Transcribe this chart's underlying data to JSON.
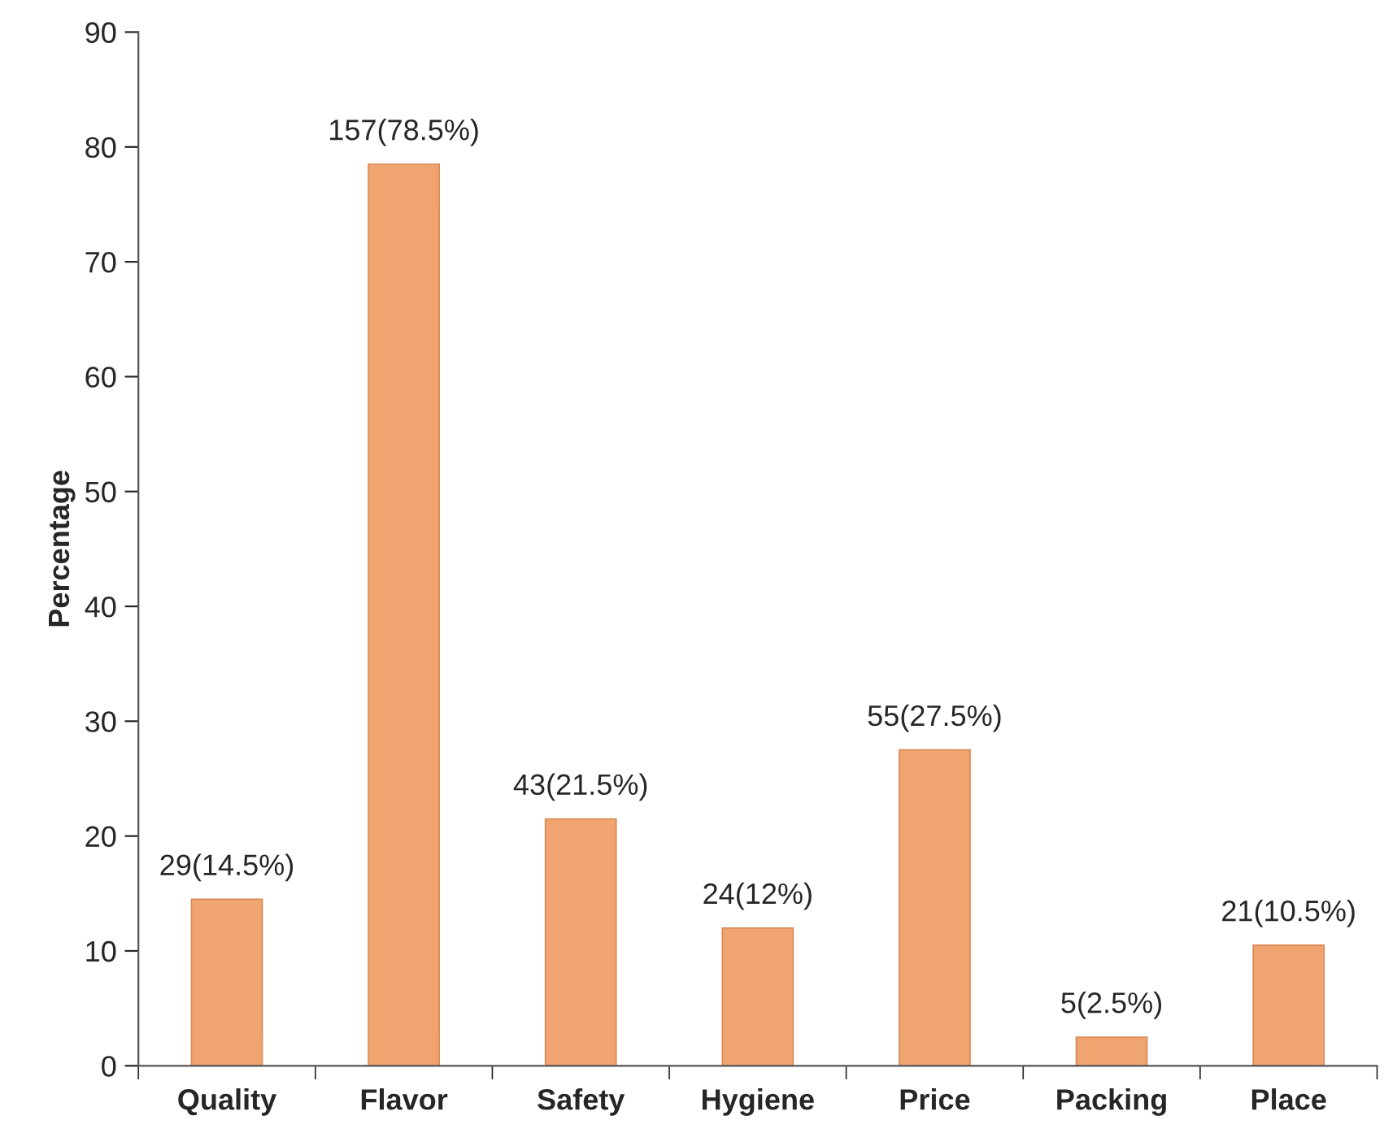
{
  "chart_data": {
    "type": "bar",
    "ylabel": "Percentage",
    "categories": [
      "Quality",
      "Flavor",
      "Safety",
      "Hygiene",
      "Price",
      "Packing",
      "Place"
    ],
    "values": [
      14.5,
      78.5,
      21.5,
      12,
      27.5,
      2.5,
      10.5
    ],
    "value_labels": [
      "29(14.5%)",
      "157(78.5%)",
      "43(21.5%)",
      "24(12%)",
      "55(27.5%)",
      "5(2.5%)",
      "21(10.5%)"
    ],
    "color": "#f0a570",
    "ylim": [
      0,
      90
    ],
    "yticks": [
      0,
      10,
      20,
      30,
      40,
      50,
      60,
      70,
      80,
      90
    ],
    "grid": false,
    "legend": false
  }
}
